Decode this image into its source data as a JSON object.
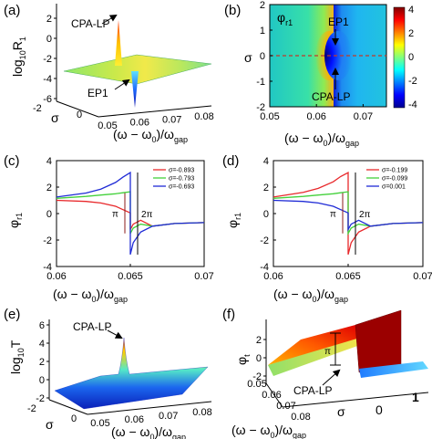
{
  "chart_data": [
    {
      "panel": "(a)",
      "type": "3d-surface",
      "ylabel": "log10R1",
      "ylabel_main": "log",
      "ylabel_sub": "10",
      "ylabel_tail": "R",
      "ylabel_sub2": "1",
      "xlabel": "(ω − ω0)/ωgap",
      "depth_label": "σ",
      "z_ticks": [
        "2",
        "0",
        "-2",
        "-4",
        "-6"
      ],
      "x_ticks": [
        "0.05",
        "0.06",
        "0.07",
        "0.08"
      ],
      "depth_ticks": [
        "-2",
        "0"
      ],
      "annotations": [
        "CPA-LP",
        "EP1"
      ],
      "peak": {
        "x": 0.065,
        "sigma": 0,
        "log10R1": 2
      },
      "dip": {
        "x": 0.065,
        "sigma": 0,
        "log10R1": -6
      }
    },
    {
      "panel": "(b)",
      "type": "heatmap",
      "label": "φr1",
      "ylabel": "σ",
      "xlabel": "(ω − ω0)/ωgap",
      "x_ticks": [
        "0.05",
        "0.06",
        "0.07"
      ],
      "x_tick_values": [
        0.05,
        0.06,
        0.07
      ],
      "y_ticks": [
        "2",
        "1",
        "0",
        "-1",
        "-2"
      ],
      "y_tick_values": [
        2,
        1,
        0,
        -1,
        -2
      ],
      "xlim": [
        0.05,
        0.075
      ],
      "ylim": [
        -2,
        2
      ],
      "colorbar": {
        "ticks": [
          "4",
          "2",
          "0",
          "-2",
          "-4"
        ],
        "range": [
          -4,
          4
        ]
      },
      "singularity": {
        "x": 0.065,
        "sigma": 0
      },
      "dashed_line_sigma": 0,
      "annotations": [
        "EP1",
        "CPA-LP"
      ]
    },
    {
      "panel": "(c)",
      "type": "line",
      "ylabel": "φr1",
      "xlabel": "(ω − ω0)/ωgap",
      "x_ticks": [
        "0.06",
        "0.065",
        "0.07"
      ],
      "x_tick_values": [
        0.06,
        0.065,
        0.07
      ],
      "y_ticks": [
        "4",
        "2",
        "0",
        "-2",
        "-4"
      ],
      "y_tick_values": [
        4,
        2,
        0,
        -2,
        -4
      ],
      "xlim": [
        0.06,
        0.07
      ],
      "ylim": [
        -4,
        4
      ],
      "legend": [
        "σ=-0.893",
        "σ=-0.793",
        "σ=-0.693"
      ],
      "series": [
        {
          "name": "σ=-0.893",
          "color": "#e8282b",
          "wrap": false,
          "jump_to": -1.2,
          "x": [
            0.06,
            0.062,
            0.063,
            0.064,
            0.0645,
            0.065
          ],
          "y": [
            1.0,
            0.92,
            0.8,
            0.55,
            0.3,
            0.05
          ]
        },
        {
          "name": "σ=-0.793",
          "color": "#43d13b",
          "wrap": false,
          "jump_to": -1.5,
          "x": [
            0.06,
            0.062,
            0.063,
            0.064,
            0.0645,
            0.065
          ],
          "y": [
            1.15,
            1.3,
            1.4,
            1.5,
            1.57,
            1.65
          ]
        },
        {
          "name": "σ=-0.693",
          "color": "#1f2bd6",
          "wrap": true,
          "jump_to": -3.1,
          "x": [
            0.06,
            0.062,
            0.063,
            0.064,
            0.0645,
            0.065
          ],
          "y": [
            1.25,
            1.55,
            1.85,
            2.35,
            2.75,
            3.1
          ]
        }
      ],
      "annotations": [
        "π",
        "2π"
      ]
    },
    {
      "panel": "(d)",
      "type": "line",
      "ylabel": "φr1",
      "xlabel": "(ω − ω0)/ωgap",
      "x_ticks": [
        "0.06",
        "0.065",
        "0.07"
      ],
      "x_tick_values": [
        0.06,
        0.065,
        0.07
      ],
      "y_ticks": [
        "4",
        "2",
        "0",
        "-2",
        "-4"
      ],
      "y_tick_values": [
        4,
        2,
        0,
        -2,
        -4
      ],
      "xlim": [
        0.06,
        0.07
      ],
      "ylim": [
        -4,
        4
      ],
      "legend": [
        "σ=-0.199",
        "σ=-0.099",
        "σ=0.001"
      ],
      "series": [
        {
          "name": "σ=-0.199",
          "color": "#e8282b",
          "wrap": true,
          "jump_to": -3.1,
          "x": [
            0.06,
            0.062,
            0.063,
            0.064,
            0.0645,
            0.065
          ],
          "y": [
            1.25,
            1.6,
            1.9,
            2.4,
            2.8,
            3.1
          ]
        },
        {
          "name": "σ=-0.099",
          "color": "#43d13b",
          "wrap": false,
          "jump_to": -1.5,
          "x": [
            0.06,
            0.062,
            0.063,
            0.064,
            0.0645,
            0.065
          ],
          "y": [
            1.15,
            1.3,
            1.4,
            1.5,
            1.57,
            1.65
          ]
        },
        {
          "name": "σ=0.001",
          "color": "#1f2bd6",
          "wrap": false,
          "jump_to": -1.2,
          "x": [
            0.06,
            0.062,
            0.063,
            0.064,
            0.0645,
            0.065
          ],
          "y": [
            1.0,
            0.92,
            0.8,
            0.55,
            0.3,
            0.05
          ]
        }
      ],
      "annotations": [
        "π",
        "2π"
      ]
    },
    {
      "panel": "(e)",
      "type": "3d-surface",
      "ylabel": "log10T",
      "ylabel_main": "log",
      "ylabel_sub": "10",
      "ylabel_tail": "T",
      "xlabel": "(ω − ω0)/ωgap",
      "depth_label": "σ",
      "z_ticks": [
        "6",
        "4",
        "2",
        "0",
        "-2"
      ],
      "x_ticks": [
        "0.05",
        "0.06",
        "0.07",
        "0.08"
      ],
      "depth_ticks": [
        "-2",
        "0"
      ],
      "annotations": [
        "CPA-LP"
      ],
      "peak": {
        "x": 0.065,
        "sigma": 0,
        "log10T": 4.3
      }
    },
    {
      "panel": "(f)",
      "type": "3d-surface",
      "ylabel": "φt",
      "xlabel": "(ω − ω0)/ωgap",
      "depth_label": "σ",
      "z_ticks": [
        "2",
        "0",
        "-2"
      ],
      "x_ticks": [
        "0.05",
        "0.06",
        "0.07",
        "0.08"
      ],
      "depth_ticks": [
        "0",
        "1"
      ],
      "annotations": [
        "π",
        "CPA-LP"
      ]
    }
  ],
  "colors": {
    "red": "#e8282b",
    "green": "#43d13b",
    "blue": "#1f2bd6",
    "annot_line": "#8b1a1a",
    "dashed": "#c0392b"
  }
}
